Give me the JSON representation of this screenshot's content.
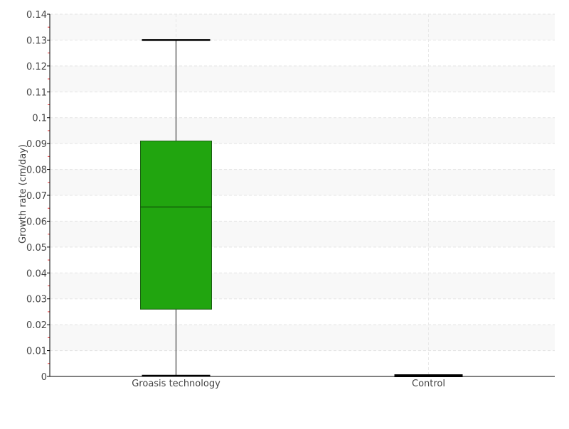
{
  "chart_data": {
    "type": "box",
    "title": "",
    "xlabel": "",
    "ylabel": "Growth rate (cm/day)",
    "ylim": [
      0,
      0.14
    ],
    "yticks": [
      "0",
      "0.01",
      "0.02",
      "0.03",
      "0.04",
      "0.05",
      "0.06",
      "0.07",
      "0.08",
      "0.09",
      "0.1",
      "0.11",
      "0.12",
      "0.13",
      "0.14"
    ],
    "grid": true,
    "categories": [
      "Groasis technology",
      "Control"
    ],
    "boxes": [
      {
        "category": "Groasis technology",
        "min": 0,
        "q1": 0.026,
        "median": 0.0655,
        "q3": 0.091,
        "max": 0.13,
        "color": "#21a50f"
      },
      {
        "category": "Control",
        "min": 0,
        "q1": 0,
        "median": 0,
        "q3": 0,
        "max": 0,
        "color": "#21a50f"
      }
    ]
  }
}
